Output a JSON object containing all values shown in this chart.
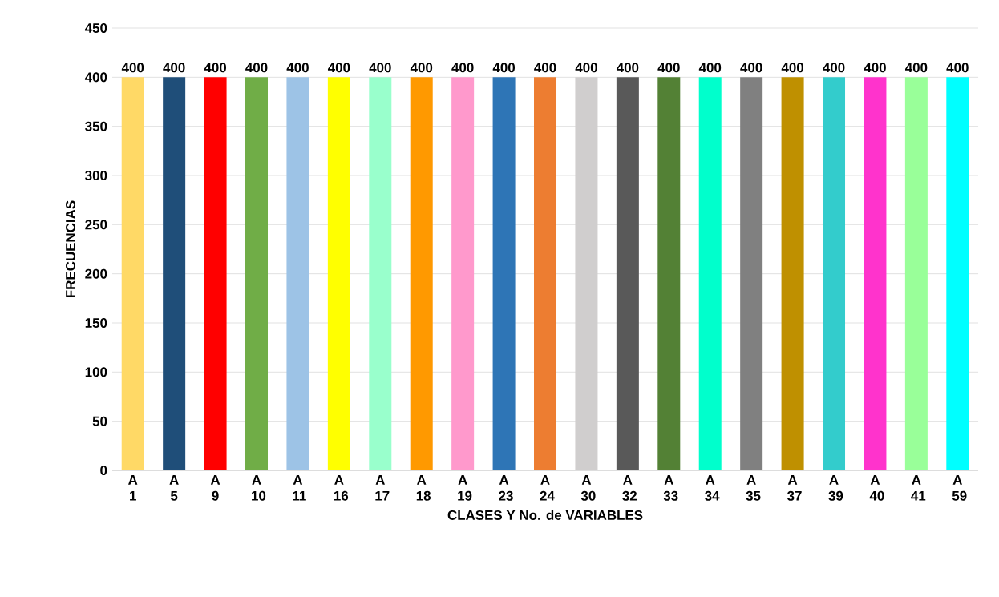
{
  "chart_data": {
    "type": "bar",
    "xlabel": "CLASES Y No. de VARIABLES",
    "ylabel": "FRECUENCIAS",
    "categories": [
      "A 1",
      "A 5",
      "A 9",
      "A 10",
      "A 11",
      "A 16",
      "A 17",
      "A 18",
      "A 19",
      "A 23",
      "A 24",
      "A 30",
      "A 32",
      "A 33",
      "A 34",
      "A 35",
      "A 37",
      "A 39",
      "A 40",
      "A 41",
      "A 59"
    ],
    "values": [
      400,
      400,
      400,
      400,
      400,
      400,
      400,
      400,
      400,
      400,
      400,
      400,
      400,
      400,
      400,
      400,
      400,
      400,
      400,
      400,
      400
    ],
    "colors": [
      "#ffd966",
      "#1f4e79",
      "#ff0000",
      "#70ad47",
      "#9dc3e6",
      "#ffff00",
      "#99ffcc",
      "#ff9900",
      "#ff99cc",
      "#2e75b6",
      "#ed7d31",
      "#d0cece",
      "#595959",
      "#538135",
      "#00ffcc",
      "#808080",
      "#bf9000",
      "#33cccc",
      "#ff33cc",
      "#99ff99",
      "#00ffff"
    ],
    "ylim": [
      0,
      450
    ],
    "yticks": [
      0,
      50,
      100,
      150,
      200,
      250,
      300,
      350,
      400,
      450
    ],
    "grid": "y",
    "data_labels": true
  }
}
